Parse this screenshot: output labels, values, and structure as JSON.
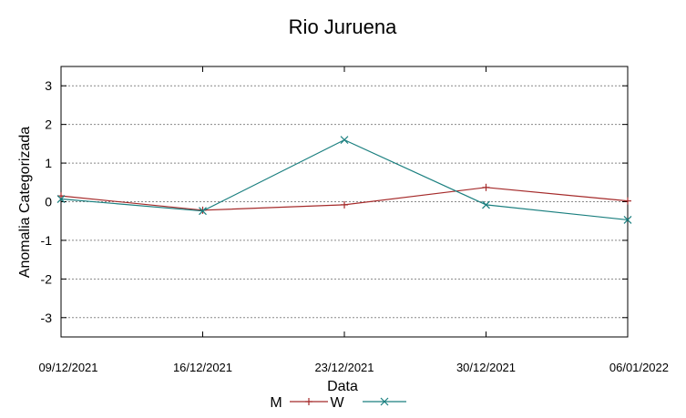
{
  "chart_data": {
    "type": "line",
    "title": "Rio Juruena",
    "xlabel": "Data",
    "ylabel": "Anomalia Categorizada",
    "categories": [
      "09/12/2021",
      "16/12/2021",
      "23/12/2021",
      "30/12/2021",
      "06/01/2022"
    ],
    "yticks": [
      "3",
      "2",
      "1",
      "0",
      "-1",
      "-2",
      "-3"
    ],
    "ylim": [
      -3.5,
      3.5
    ],
    "grid": true,
    "legend_position": "bottom-center",
    "series": [
      {
        "name": "M",
        "values": [
          0.15,
          -0.22,
          -0.08,
          0.37,
          0.02
        ],
        "color": "#a52a2a",
        "marker": "plus"
      },
      {
        "name": "W",
        "values": [
          0.07,
          -0.24,
          1.6,
          -0.08,
          -0.47
        ],
        "color": "#1a7f7f",
        "marker": "x"
      }
    ]
  }
}
